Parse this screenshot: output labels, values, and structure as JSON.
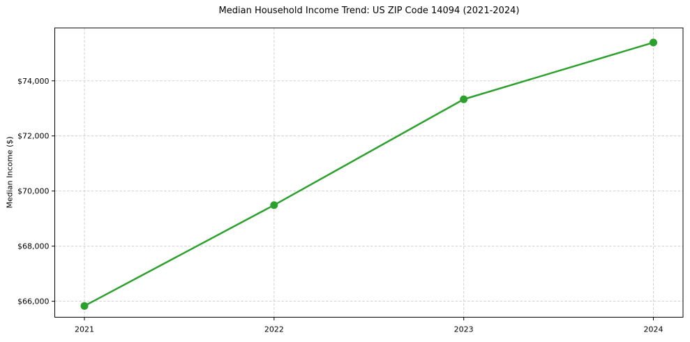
{
  "chart_data": {
    "type": "line",
    "title": "Median Household Income Trend: US ZIP Code 14094 (2021-2024)",
    "xlabel": "",
    "ylabel": "Median Income ($)",
    "categories": [
      "2021",
      "2022",
      "2023",
      "2024"
    ],
    "series": [
      {
        "name": "Median Household Income",
        "values": [
          65830,
          69490,
          73330,
          75390
        ]
      }
    ],
    "ytick_values": [
      66000,
      68000,
      70000,
      72000,
      74000
    ],
    "ytick_labels": [
      "$66,000",
      "$68,000",
      "$70,000",
      "$72,000",
      "$74,000"
    ],
    "ylim": [
      65420,
      75920
    ],
    "grid": "both, dashed",
    "legend_position": "none",
    "marker": "circle",
    "colors": {
      "line": "#2ca02c",
      "marker": "#2ca02c",
      "grid": "#cccccc",
      "axis": "#000000",
      "background": "#ffffff"
    }
  }
}
